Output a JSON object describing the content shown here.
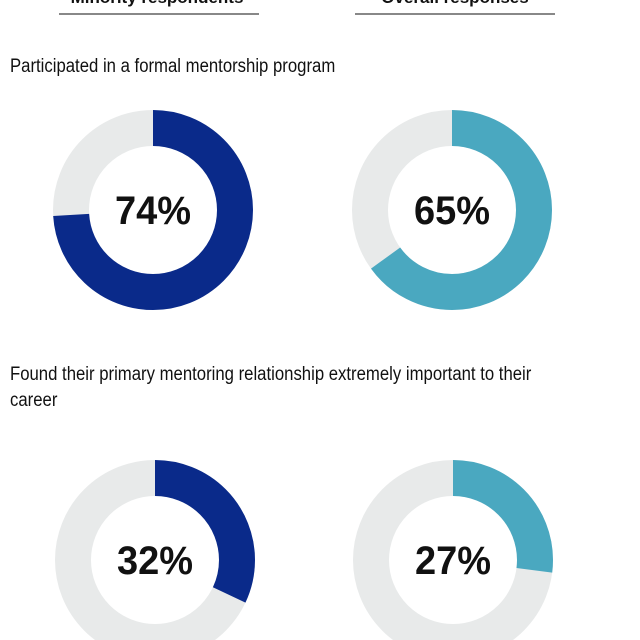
{
  "headers": [
    "Minority respondents",
    "Overall responses"
  ],
  "colors": {
    "minority": "#0a2a8a",
    "overall": "#4aa8c0",
    "track": "#e8eaea"
  },
  "chart_data": [
    {
      "type": "pie",
      "title": "Participated in a formal mentorship program",
      "series": [
        {
          "name": "Minority respondents",
          "value": 74,
          "label": "74%"
        },
        {
          "name": "Overall responses",
          "value": 65,
          "label": "65%"
        }
      ]
    },
    {
      "type": "pie",
      "title": "Found their primary mentoring relationship extremely important to their career",
      "series": [
        {
          "name": "Minority respondents",
          "value": 32,
          "label": "32%"
        },
        {
          "name": "Overall responses",
          "value": 27,
          "label": "27%"
        }
      ]
    }
  ]
}
